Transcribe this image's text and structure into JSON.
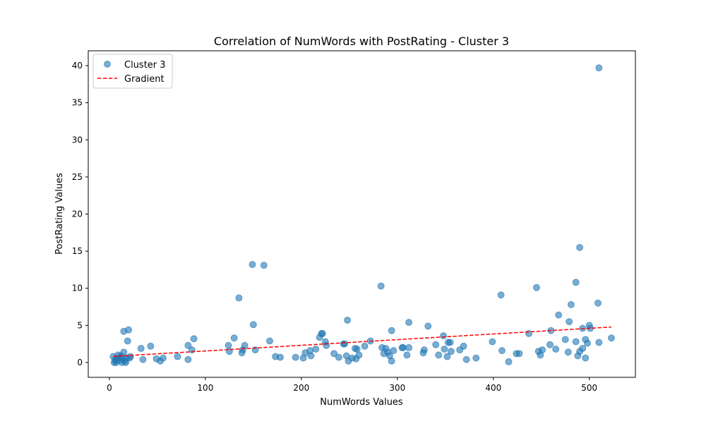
{
  "chart_data": {
    "type": "scatter",
    "title": "Correlation of NumWords with PostRating - Cluster 3",
    "xlabel": "NumWords Values",
    "ylabel": "PostRating Values",
    "xlim": [
      -22,
      548
    ],
    "ylim": [
      -2,
      42
    ],
    "xticks": [
      0,
      100,
      200,
      300,
      400,
      500
    ],
    "yticks": [
      0,
      5,
      10,
      15,
      20,
      25,
      30,
      35,
      40
    ],
    "grid": false,
    "legend_position": "upper-left",
    "series": [
      {
        "name": "Cluster 3",
        "kind": "scatter",
        "color": "#1f77b4",
        "points": [
          [
            4,
            0.8
          ],
          [
            5,
            0.0
          ],
          [
            6,
            0.3
          ],
          [
            7,
            0.0
          ],
          [
            8,
            0.5
          ],
          [
            9,
            1.0
          ],
          [
            10,
            0.3
          ],
          [
            11,
            0.7
          ],
          [
            12,
            0.9
          ],
          [
            13,
            0.0
          ],
          [
            14,
            0.5
          ],
          [
            15,
            1.4
          ],
          [
            15,
            4.2
          ],
          [
            16,
            0.2
          ],
          [
            17,
            0.0
          ],
          [
            18,
            0.6
          ],
          [
            19,
            2.9
          ],
          [
            20,
            4.4
          ],
          [
            21,
            0.6
          ],
          [
            22,
            0.8
          ],
          [
            33,
            1.9
          ],
          [
            35,
            0.4
          ],
          [
            43,
            2.2
          ],
          [
            49,
            0.5
          ],
          [
            53,
            0.2
          ],
          [
            56,
            0.6
          ],
          [
            71,
            0.8
          ],
          [
            82,
            2.3
          ],
          [
            82,
            0.4
          ],
          [
            86,
            1.7
          ],
          [
            88,
            3.2
          ],
          [
            124,
            2.3
          ],
          [
            125,
            1.5
          ],
          [
            130,
            3.3
          ],
          [
            135,
            8.7
          ],
          [
            138,
            1.3
          ],
          [
            139,
            1.7
          ],
          [
            141,
            2.3
          ],
          [
            149,
            13.2
          ],
          [
            150,
            5.1
          ],
          [
            152,
            1.7
          ],
          [
            161,
            13.1
          ],
          [
            167,
            2.9
          ],
          [
            173,
            0.8
          ],
          [
            178,
            0.7
          ],
          [
            194,
            0.7
          ],
          [
            202,
            0.6
          ],
          [
            204,
            1.3
          ],
          [
            209,
            1.6
          ],
          [
            210,
            0.9
          ],
          [
            215,
            1.8
          ],
          [
            219,
            3.4
          ],
          [
            221,
            3.9
          ],
          [
            222,
            3.9
          ],
          [
            225,
            2.8
          ],
          [
            226,
            2.3
          ],
          [
            234,
            1.2
          ],
          [
            239,
            0.7
          ],
          [
            244,
            2.5
          ],
          [
            245,
            2.5
          ],
          [
            247,
            0.9
          ],
          [
            248,
            5.7
          ],
          [
            249,
            0.2
          ],
          [
            253,
            0.6
          ],
          [
            256,
            1.9
          ],
          [
            257,
            0.5
          ],
          [
            258,
            1.8
          ],
          [
            260,
            1.0
          ],
          [
            266,
            2.2
          ],
          [
            272,
            2.9
          ],
          [
            283,
            10.3
          ],
          [
            284,
            2.0
          ],
          [
            286,
            1.2
          ],
          [
            288,
            1.9
          ],
          [
            290,
            1.4
          ],
          [
            292,
            0.9
          ],
          [
            294,
            4.3
          ],
          [
            294,
            0.2
          ],
          [
            296,
            1.6
          ],
          [
            305,
            2.0
          ],
          [
            306,
            2.0
          ],
          [
            310,
            1.0
          ],
          [
            312,
            5.4
          ],
          [
            312,
            2.0
          ],
          [
            327,
            1.3
          ],
          [
            328,
            1.7
          ],
          [
            332,
            4.9
          ],
          [
            340,
            2.4
          ],
          [
            343,
            1.0
          ],
          [
            348,
            3.6
          ],
          [
            349,
            1.8
          ],
          [
            352,
            0.8
          ],
          [
            353,
            2.7
          ],
          [
            355,
            2.7
          ],
          [
            356,
            1.5
          ],
          [
            365,
            1.7
          ],
          [
            369,
            2.2
          ],
          [
            372,
            0.4
          ],
          [
            382,
            0.6
          ],
          [
            399,
            2.8
          ],
          [
            408,
            9.1
          ],
          [
            409,
            1.6
          ],
          [
            416,
            0.1
          ],
          [
            424,
            1.2
          ],
          [
            427,
            1.2
          ],
          [
            437,
            3.9
          ],
          [
            445,
            10.1
          ],
          [
            447,
            1.5
          ],
          [
            449,
            1.0
          ],
          [
            451,
            1.7
          ],
          [
            459,
            2.4
          ],
          [
            460,
            4.3
          ],
          [
            465,
            1.8
          ],
          [
            468,
            6.4
          ],
          [
            475,
            3.1
          ],
          [
            478,
            1.4
          ],
          [
            479,
            5.5
          ],
          [
            481,
            7.8
          ],
          [
            486,
            10.8
          ],
          [
            486,
            2.8
          ],
          [
            488,
            0.9
          ],
          [
            490,
            15.5
          ],
          [
            490,
            1.5
          ],
          [
            493,
            4.6
          ],
          [
            493,
            1.9
          ],
          [
            496,
            0.6
          ],
          [
            496,
            3.1
          ],
          [
            498,
            2.6
          ],
          [
            500,
            5.0
          ],
          [
            501,
            4.6
          ],
          [
            509,
            8.0
          ],
          [
            510,
            39.7
          ],
          [
            510,
            2.7
          ],
          [
            523,
            3.3
          ]
        ]
      },
      {
        "name": "Gradient",
        "kind": "line",
        "color": "#ff0000",
        "dash": "dashed",
        "points": [
          [
            4,
            0.82
          ],
          [
            523,
            4.78
          ]
        ]
      }
    ]
  }
}
